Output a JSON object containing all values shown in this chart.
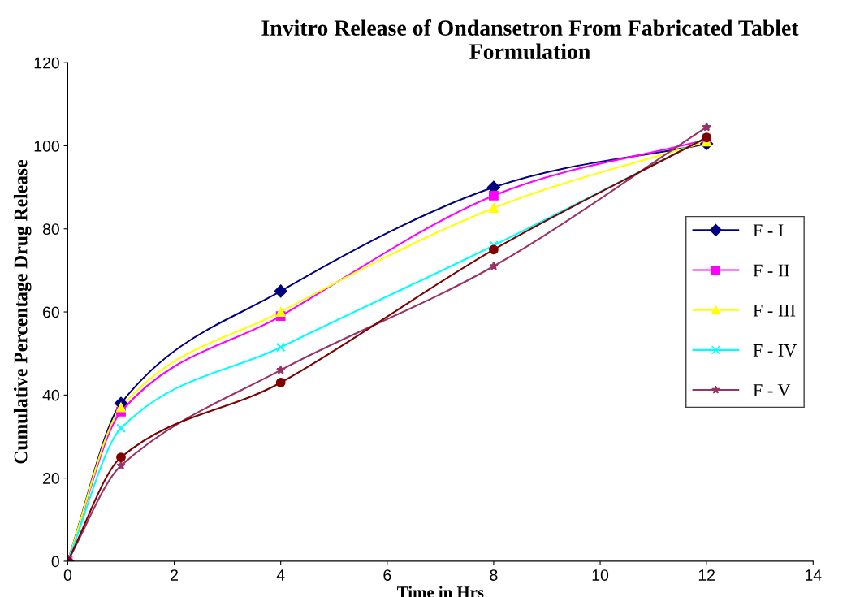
{
  "chart_data": {
    "type": "line",
    "title": "Invitro Release of Ondansetron From Fabricated Tablet Formulation",
    "xlabel": "Time in Hrs",
    "ylabel": "Cumulative Percentage Drug Release",
    "x": [
      0,
      1,
      4,
      8,
      12
    ],
    "series": [
      {
        "name": "F - I",
        "color": "#000080",
        "marker": "diamond",
        "values": [
          0,
          38,
          65,
          90,
          100.5
        ]
      },
      {
        "name": "F - II",
        "color": "#ff00ff",
        "marker": "square",
        "values": [
          0,
          36,
          59,
          88,
          101.5
        ]
      },
      {
        "name": "F - III",
        "color": "#ffff00",
        "marker": "triangle",
        "values": [
          0,
          37,
          60,
          85,
          101
        ]
      },
      {
        "name": "F - IV",
        "color": "#00ffff",
        "marker": "cross",
        "values": [
          0,
          32,
          51.5,
          76,
          102
        ]
      },
      {
        "name": "F - V",
        "color": "#993366",
        "marker": "star",
        "values": [
          0,
          23,
          46,
          71,
          104.5
        ]
      },
      {
        "color": "#800000",
        "marker": "circle",
        "values": [
          0,
          25,
          43,
          75,
          102
        ]
      }
    ],
    "xlim": [
      0,
      14
    ],
    "xticks": [
      0,
      2,
      4,
      6,
      8,
      10,
      12,
      14
    ],
    "ylim": [
      0,
      120
    ],
    "yticks": [
      0,
      20,
      40,
      60,
      80,
      100,
      120
    ],
    "grid": false,
    "legend": "right",
    "line_style": "solid"
  }
}
